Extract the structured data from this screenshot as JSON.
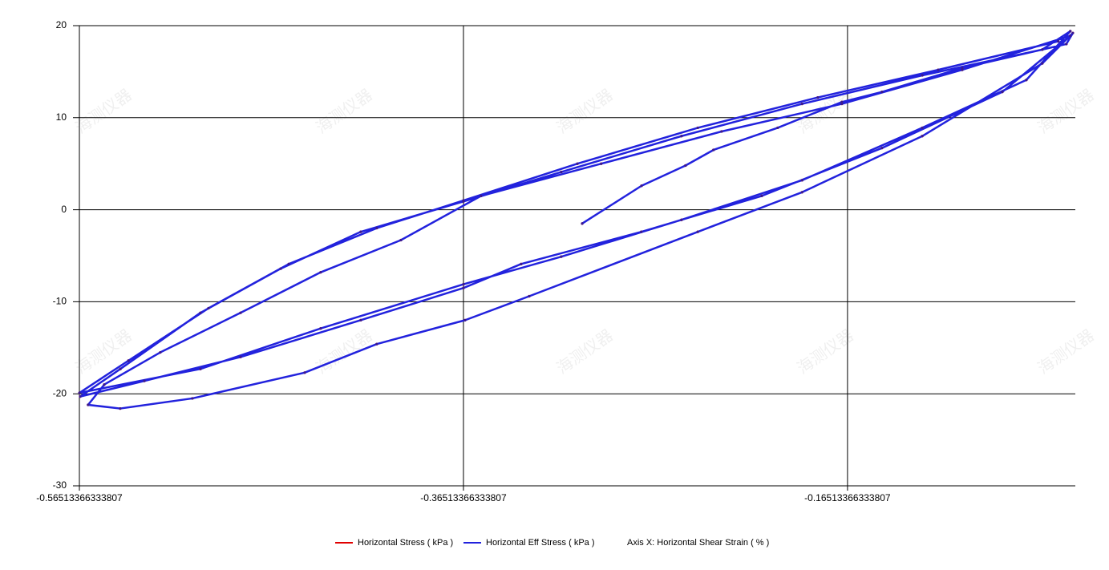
{
  "chart_data": {
    "type": "line",
    "xlabel": "Axis X: Horizontal Shear Strain ( % )",
    "watermark": "海测仪器",
    "xlim": [
      -0.56513366333807,
      -0.0465
    ],
    "xticks": [
      -0.56513366333807,
      -0.36513366333807,
      -0.16513366333807
    ],
    "ylim": [
      -30,
      20
    ],
    "yticks": [
      -30,
      -20,
      -10,
      0,
      10,
      20
    ],
    "grid": true,
    "x": [
      -0.3033,
      -0.2724,
      -0.2495,
      -0.2349,
      -0.2015,
      -0.1681,
      -0.1472,
      -0.1054,
      -0.0512,
      -0.0478,
      -0.0637,
      -0.1262,
      -0.1888,
      -0.2431,
      -0.3309,
      -0.3643,
      -0.4103,
      -0.4478,
      -0.5063,
      -0.5439,
      -0.5606,
      -0.5522,
      -0.523,
      -0.4812,
      -0.4395,
      -0.3977,
      -0.356,
      -0.2934,
      -0.2307,
      -0.1681,
      -0.1054,
      -0.0491,
      -0.0845,
      -0.1472,
      -0.2098,
      -0.2725,
      -0.3351,
      -0.3651,
      -0.4186,
      -0.4812,
      -0.5313,
      -0.5647,
      -0.5438,
      -0.5021,
      -0.4603,
      -0.4186,
      -0.3651,
      -0.3142,
      -0.2516,
      -0.1888,
      -0.1262,
      -0.0637,
      -0.0491,
      -0.072,
      -0.1262,
      -0.1888,
      -0.2516,
      -0.3142,
      -0.3651,
      -0.4395,
      -0.5021,
      -0.5651,
      -0.5396,
      -0.4979,
      -0.4561,
      -0.4103,
      -0.3651,
      -0.3058,
      -0.2431,
      -0.1806,
      -0.1179,
      -0.0554
    ],
    "series": [
      {
        "name": "Horizontal Stress ( kPa )",
        "color": "#e00000",
        "values": [
          -1.5,
          2.6,
          4.8,
          6.5,
          8.9,
          11.7,
          12.8,
          15.4,
          18.0,
          19.2,
          15.9,
          8.0,
          1.9,
          -2.4,
          -9.4,
          -12.0,
          -14.6,
          -17.7,
          -20.5,
          -21.6,
          -21.2,
          -19.0,
          -15.5,
          -11.2,
          -6.8,
          -3.3,
          1.5,
          5.0,
          8.5,
          11.5,
          15.2,
          18.9,
          12.8,
          6.7,
          1.5,
          -2.4,
          -5.9,
          -8.5,
          -12.0,
          -16.0,
          -18.6,
          -20.3,
          -17.3,
          -11.2,
          -6.4,
          -2.4,
          0.9,
          4.1,
          8.0,
          11.5,
          14.6,
          17.4,
          19.4,
          14.1,
          8.9,
          3.2,
          -1.1,
          -5.1,
          -8.1,
          -12.9,
          -17.3,
          -19.9,
          -16.4,
          -10.7,
          -5.9,
          -2.0,
          1.0,
          5.0,
          8.9,
          12.2,
          15.2,
          18.3
        ]
      },
      {
        "name": "Horizontal Eff Stress ( kPa )",
        "color": "#2222dd",
        "values": [
          -1.5,
          2.6,
          4.8,
          6.5,
          8.9,
          11.7,
          12.8,
          15.4,
          18.0,
          19.2,
          15.9,
          8.0,
          1.9,
          -2.4,
          -9.4,
          -12.0,
          -14.6,
          -17.7,
          -20.5,
          -21.6,
          -21.2,
          -19.0,
          -15.5,
          -11.2,
          -6.8,
          -3.3,
          1.5,
          5.0,
          8.5,
          11.5,
          15.2,
          18.9,
          12.8,
          6.7,
          1.5,
          -2.4,
          -5.9,
          -8.5,
          -12.0,
          -16.0,
          -18.6,
          -20.3,
          -17.3,
          -11.2,
          -6.4,
          -2.4,
          0.9,
          4.1,
          8.0,
          11.5,
          14.6,
          17.4,
          19.4,
          14.1,
          8.9,
          3.2,
          -1.1,
          -5.1,
          -8.1,
          -12.9,
          -17.3,
          -19.9,
          -16.4,
          -10.7,
          -5.9,
          -2.0,
          1.0,
          5.0,
          8.9,
          12.2,
          15.2,
          18.3
        ]
      }
    ]
  }
}
